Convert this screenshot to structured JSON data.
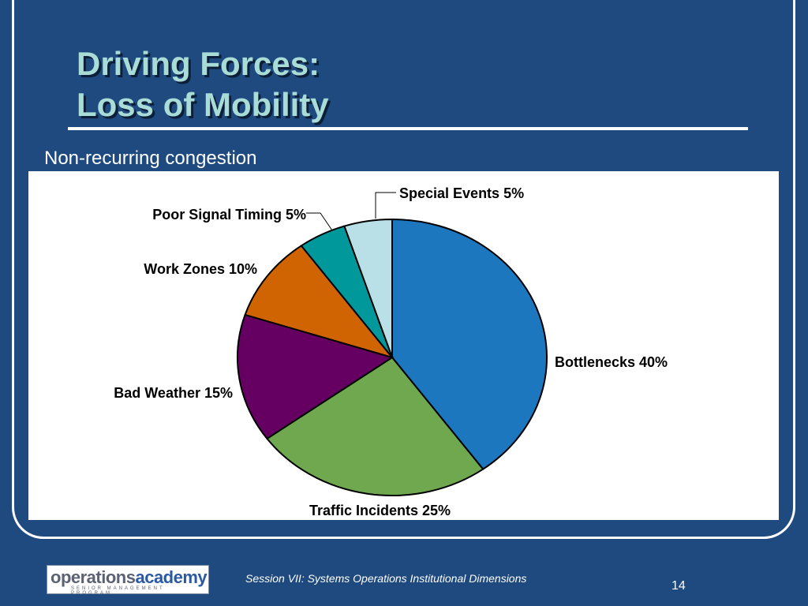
{
  "slide": {
    "title_line1": "Driving Forces:",
    "title_line2": "Loss of Mobility",
    "subtitle": "Non-recurring congestion",
    "footer_text": "Session VII: Systems Operations Institutional Dimensions",
    "page_number": "14"
  },
  "logo": {
    "part1": "operations",
    "part2": "academy",
    "subline": "SENIOR MANAGEMENT PROGRAM"
  },
  "colors": {
    "background": "#1f4a80",
    "title": "#a9dcd6",
    "border": "#ffffff"
  },
  "chart_data": {
    "type": "pie",
    "slices": [
      {
        "label": "Bottlenecks 40%",
        "value": 40,
        "color": "#1c77bf"
      },
      {
        "label": "Traffic Incidents 25%",
        "value": 25,
        "color": "#6fa84e"
      },
      {
        "label": "Bad Weather 15%",
        "value": 15,
        "color": "#650062"
      },
      {
        "label": "Work Zones 10%",
        "value": 10,
        "color": "#d06302"
      },
      {
        "label": "Poor Signal Timing 5%",
        "value": 5,
        "color": "#00989b"
      },
      {
        "label": "Special Events 5%",
        "value": 5,
        "color": "#b8e0e6"
      }
    ]
  }
}
